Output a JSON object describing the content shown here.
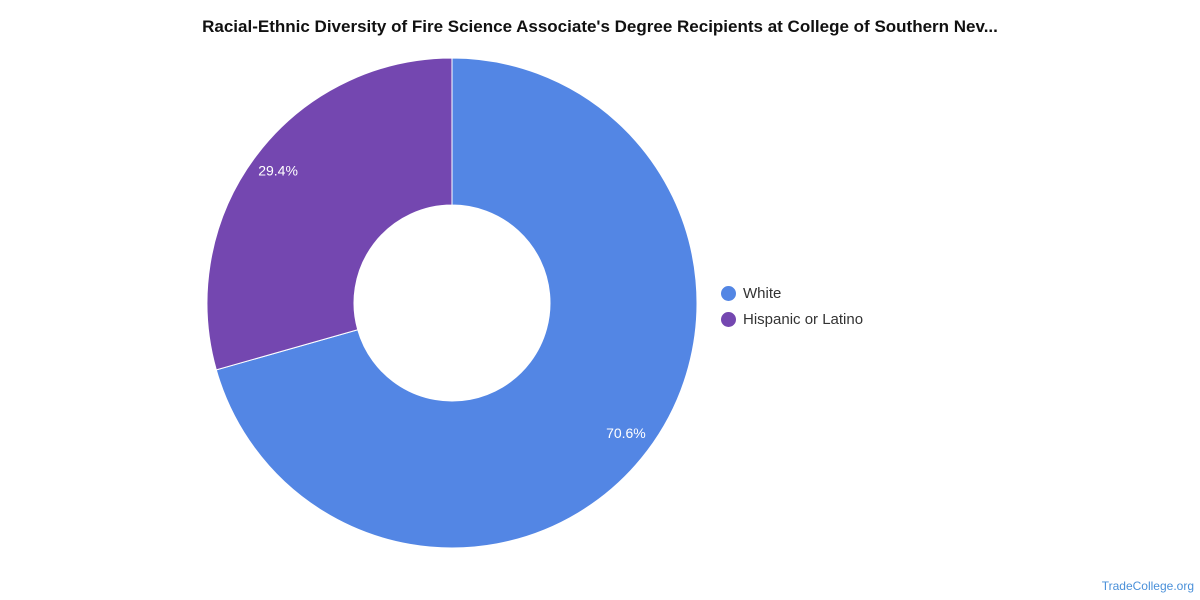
{
  "chart_data": {
    "type": "pie",
    "variant": "donut",
    "title": "Racial-Ethnic Diversity of Fire Science Associate's Degree Recipients at College of Southern Nev...",
    "series": [
      {
        "name": "White",
        "value": 70.6,
        "label": "70.6%",
        "color": "#5386e4"
      },
      {
        "name": "Hispanic or Latino",
        "value": 29.4,
        "label": "29.4%",
        "color": "#7447b0"
      }
    ],
    "legend_position": "right"
  },
  "source": "TradeCollege.org"
}
